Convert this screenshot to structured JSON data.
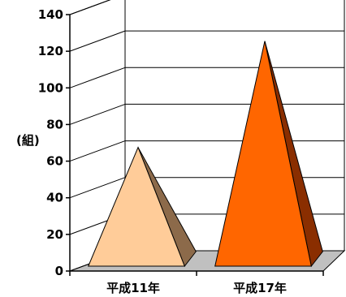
{
  "chart_data": {
    "type": "bar",
    "style": "3d-pyramid",
    "categories": [
      "平成11年",
      "平成17年"
    ],
    "values": [
      62,
      120
    ],
    "ylabel": "(組)",
    "ylim": [
      0,
      140
    ],
    "yticks": [
      0,
      20,
      40,
      60,
      80,
      100,
      120,
      140
    ],
    "grid": true,
    "colors": {
      "bar1_front": "#ffcc99",
      "bar1_side": "#8c6a4a",
      "bar2_front": "#ff6600",
      "bar2_side": "#8a2e00",
      "floor": "#c0c0c0"
    }
  }
}
